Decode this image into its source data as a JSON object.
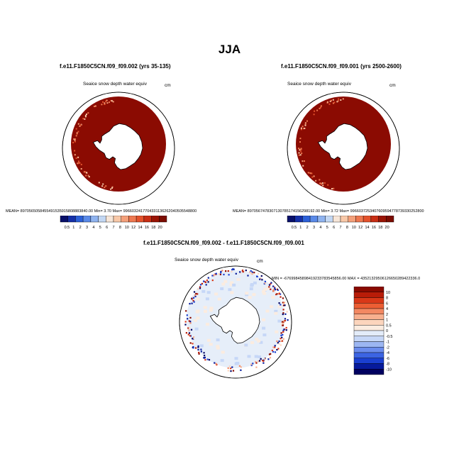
{
  "page": {
    "title": "JJA"
  },
  "panels": [
    {
      "title": "f.e11.F1850C5CN.f09_f09.002 (yrs 35-135)",
      "variable": "Seaice snow depth water equiv",
      "units": "cm",
      "stats": "MEAN= 8970565058455491535915808883840.00  Min=   3.70  Max= 9966032417704331136262040505548800"
    },
    {
      "title": "f.e11.F1850C5CN.f09_f09.001 (yrs 2500-2600)",
      "variable": "Seaice snow depth water equiv",
      "units": "cm",
      "stats": "MEAN= 8970567478307130785174156298192.00  Min=   3.72  Max= 9966037253407609594778739330252800"
    },
    {
      "title": "f.e11.F1850C5CN.f09_f09.002 - f.e11.F1850C5CN.f09_f09.001",
      "variable": "Seaice snow depth water equiv",
      "units": "cm",
      "stats": "MIN = -67699845898419233783545856.00  MAX = 43521329506126650289422336.0"
    }
  ],
  "colors": {
    "snow_depth_palette": [
      "#08106a",
      "#1530a8",
      "#2c60d8",
      "#5a8ae8",
      "#8fb3ef",
      "#c2d7f3",
      "#f7e6d8",
      "#f8c8a8",
      "#f4a07a",
      "#ee7850",
      "#e4522c",
      "#c82e14",
      "#9a1405",
      "#7b0c02"
    ],
    "diff_palette": [
      "#000060",
      "#061a9c",
      "#1a3fd0",
      "#3c64e3",
      "#6b8ced",
      "#9cb6f2",
      "#c6d7f7",
      "#e3ecf9",
      "#fbece0",
      "#fcd5bd",
      "#f8b08f",
      "#f38862",
      "#ec5e34",
      "#d93818",
      "#b81c08",
      "#8a0a00"
    ],
    "land": "#ffffff",
    "ice_dominant": "#8b0b02",
    "diff_background": "#e6eef9"
  },
  "chart_data": [
    {
      "type": "heatmap",
      "projection": "south-polar-stereographic",
      "title": "f.e11.F1850C5CN.f09_f09.002 (yrs 35-135)",
      "variable": "Seaice snow depth water equiv",
      "units": "cm",
      "colorbar_levels": [
        "0.5",
        "1",
        "2",
        "3",
        "4",
        "5",
        "6",
        "7",
        "8",
        "10",
        "12",
        "14",
        "16",
        "18",
        "20"
      ],
      "mean": "8970565058455491535915808883840.00",
      "min": 3.7,
      "max": "9966032417704331136262040505548800",
      "dominant_range": "above 20"
    },
    {
      "type": "heatmap",
      "projection": "south-polar-stereographic",
      "title": "f.e11.F1850C5CN.f09_f09.001 (yrs 2500-2600)",
      "variable": "Seaice snow depth water equiv",
      "units": "cm",
      "colorbar_levels": [
        "0.5",
        "1",
        "2",
        "3",
        "4",
        "5",
        "6",
        "7",
        "8",
        "10",
        "12",
        "14",
        "16",
        "18",
        "20"
      ],
      "mean": "8970567478307130785174156298192.00",
      "min": 3.72,
      "max": "9966037253407609594778739330252800",
      "dominant_range": "above 20"
    },
    {
      "type": "heatmap",
      "projection": "south-polar-stereographic",
      "title": "f.e11.F1850C5CN.f09_f09.002 - f.e11.F1850C5CN.f09_f09.001",
      "variable": "Seaice snow depth water equiv",
      "units": "cm",
      "colorbar_levels": [
        "10",
        "8",
        "6",
        "4",
        "2",
        "1",
        "0.5",
        "0",
        "-0.5",
        "-1",
        "-2",
        "-4",
        "-6",
        "-8",
        "-10"
      ],
      "min": "-67699845898419233783545856.00",
      "max": "43521329506126650289422336.0",
      "dominant_range": "-0.5 to 0.5"
    }
  ]
}
